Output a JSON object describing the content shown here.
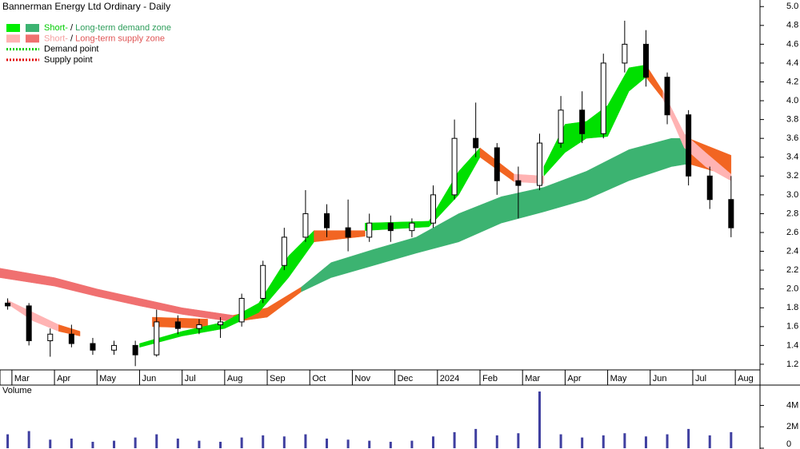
{
  "chart_data": [
    {
      "type": "candlestick",
      "title": "Bannerman Energy Ltd Ordinary - Daily",
      "xlim": [
        -0.28,
        17.58
      ],
      "ylim": [
        1.14,
        5.07
      ],
      "xticks": [
        {
          "value": 0,
          "label": "Mar"
        },
        {
          "value": 1,
          "label": "Apr"
        },
        {
          "value": 2,
          "label": "May"
        },
        {
          "value": 3,
          "label": "Jun"
        },
        {
          "value": 4,
          "label": "Jul"
        },
        {
          "value": 5,
          "label": "Aug"
        },
        {
          "value": 6,
          "label": "Sep"
        },
        {
          "value": 7,
          "label": "Oct"
        },
        {
          "value": 8,
          "label": "Nov"
        },
        {
          "value": 9,
          "label": "Dec"
        },
        {
          "value": 10,
          "label": "2024"
        },
        {
          "value": 11,
          "label": "Feb"
        },
        {
          "value": 12,
          "label": "Mar"
        },
        {
          "value": 13,
          "label": "Apr"
        },
        {
          "value": 14,
          "label": "May"
        },
        {
          "value": 15,
          "label": "Jun"
        },
        {
          "value": 16,
          "label": "Jul"
        },
        {
          "value": 17,
          "label": "Aug"
        }
      ],
      "yticks": [
        1.2,
        1.4,
        1.6,
        1.8,
        {
          "value": 2,
          "label": "2.0"
        },
        2.2,
        2.4,
        2.6,
        2.8,
        {
          "value": 3,
          "label": "3.0"
        },
        3.2,
        3.4,
        3.6,
        3.8,
        {
          "value": 4,
          "label": "4.0"
        },
        4.2,
        4.4,
        4.6,
        4.8,
        {
          "value": 5,
          "label": "5.0"
        }
      ],
      "x": [
        -0.1,
        0.4,
        0.9,
        1.4,
        1.9,
        2.4,
        2.9,
        3.4,
        3.9,
        4.4,
        4.9,
        5.4,
        5.9,
        6.4,
        6.9,
        7.4,
        7.9,
        8.4,
        8.9,
        9.4,
        9.9,
        10.4,
        10.9,
        11.4,
        11.9,
        12.4,
        12.9,
        13.4,
        13.9,
        14.4,
        14.9,
        15.4,
        15.9,
        16.4,
        16.9
      ],
      "open": [
        1.85,
        1.82,
        1.45,
        1.52,
        1.42,
        1.35,
        1.4,
        1.3,
        1.65,
        1.58,
        1.62,
        1.65,
        1.9,
        2.25,
        2.55,
        2.8,
        2.65,
        2.55,
        2.7,
        2.62,
        2.7,
        3.0,
        3.6,
        3.5,
        3.15,
        3.1,
        3.55,
        3.9,
        3.65,
        4.4,
        4.6,
        4.25,
        3.85,
        3.2,
        2.95
      ],
      "high": [
        1.9,
        1.85,
        1.58,
        1.62,
        1.48,
        1.45,
        1.45,
        1.78,
        1.72,
        1.68,
        1.7,
        1.95,
        2.3,
        2.65,
        3.05,
        2.9,
        2.95,
        2.8,
        2.78,
        2.75,
        3.1,
        3.8,
        3.98,
        3.55,
        3.3,
        3.65,
        4.05,
        4.1,
        4.5,
        4.85,
        4.75,
        4.3,
        3.9,
        3.3,
        3.2
      ],
      "low": [
        1.78,
        1.4,
        1.28,
        1.38,
        1.3,
        1.3,
        1.18,
        1.28,
        1.52,
        1.52,
        1.48,
        1.6,
        1.85,
        2.2,
        2.5,
        2.55,
        2.4,
        2.5,
        2.5,
        2.55,
        2.65,
        2.95,
        3.4,
        3.0,
        2.75,
        3.05,
        3.5,
        3.55,
        3.6,
        4.3,
        4.15,
        3.75,
        3.1,
        2.85,
        2.55
      ],
      "close": [
        1.82,
        1.45,
        1.52,
        1.42,
        1.35,
        1.4,
        1.3,
        1.65,
        1.58,
        1.62,
        1.65,
        1.9,
        2.25,
        2.55,
        2.8,
        2.65,
        2.55,
        2.7,
        2.62,
        2.7,
        3.0,
        3.6,
        3.5,
        3.15,
        3.1,
        3.55,
        3.9,
        3.65,
        4.4,
        4.6,
        4.25,
        3.85,
        3.2,
        2.95,
        2.65
      ],
      "up_color": "#ffffff",
      "down_color": "#000000",
      "zones": [
        {
          "color": "#f07070",
          "x": [
            -0.28,
            1,
            2,
            3,
            4,
            5.2
          ],
          "upper": [
            2.22,
            2.12,
            2.0,
            1.9,
            1.8,
            1.72
          ],
          "lower": [
            2.12,
            2.03,
            1.92,
            1.82,
            1.73,
            1.65
          ]
        },
        {
          "color": "#f26522",
          "x": [
            5.2,
            6,
            6.8
          ],
          "upper": [
            1.72,
            1.8,
            2.02
          ],
          "lower": [
            1.65,
            1.7,
            1.97
          ]
        },
        {
          "color": "#3cb371",
          "x": [
            6.8,
            7.5,
            8.5,
            9.5,
            10.5,
            11.5,
            12.5,
            13.5,
            14.5,
            15.5,
            15.9
          ],
          "upper": [
            2.02,
            2.28,
            2.42,
            2.55,
            2.8,
            2.98,
            3.08,
            3.25,
            3.48,
            3.6,
            3.6
          ],
          "lower": [
            1.97,
            2.12,
            2.25,
            2.38,
            2.5,
            2.7,
            2.82,
            2.95,
            3.15,
            3.3,
            3.33
          ]
        },
        {
          "color": "#f26522",
          "x": [
            15.9,
            16.9
          ],
          "upper": [
            3.6,
            3.42
          ],
          "lower": [
            3.33,
            3.2
          ]
        },
        {
          "color": "#ffb3b3",
          "x": [
            -0.1,
            0.5,
            1.1
          ],
          "upper": [
            1.88,
            1.75,
            1.62
          ],
          "lower": [
            1.84,
            1.66,
            1.55
          ]
        },
        {
          "color": "#f26522",
          "x": [
            1.1,
            1.6
          ],
          "upper": [
            1.62,
            1.55
          ],
          "lower": [
            1.55,
            1.5
          ]
        },
        {
          "color": "#f26522",
          "x": [
            3.3,
            4.6
          ],
          "upper": [
            1.7,
            1.68
          ],
          "lower": [
            1.6,
            1.58
          ]
        },
        {
          "color": "#00e000",
          "x": [
            3.0,
            4.0,
            5.0,
            5.8,
            6.5,
            7.1
          ],
          "upper": [
            1.42,
            1.55,
            1.65,
            1.85,
            2.35,
            2.62
          ],
          "lower": [
            1.38,
            1.5,
            1.58,
            1.75,
            2.12,
            2.5
          ]
        },
        {
          "color": "#f26522",
          "x": [
            7.1,
            8.3
          ],
          "upper": [
            2.62,
            2.62
          ],
          "lower": [
            2.5,
            2.56
          ]
        },
        {
          "color": "#00e000",
          "x": [
            8.3,
            9.8,
            10.5,
            11.0
          ],
          "upper": [
            2.7,
            2.72,
            3.25,
            3.5
          ],
          "lower": [
            2.62,
            2.66,
            3.0,
            3.4
          ]
        },
        {
          "color": "#f26522",
          "x": [
            11.0,
            11.8
          ],
          "upper": [
            3.5,
            3.22
          ],
          "lower": [
            3.4,
            3.14
          ]
        },
        {
          "color": "#ffb3b3",
          "x": [
            11.8,
            12.5
          ],
          "upper": [
            3.22,
            3.2
          ],
          "lower": [
            3.14,
            3.12
          ]
        },
        {
          "color": "#00e000",
          "x": [
            12.5,
            13.0,
            13.5,
            14.0,
            14.5,
            14.9
          ],
          "upper": [
            3.3,
            3.75,
            3.78,
            3.95,
            4.35,
            4.38
          ],
          "lower": [
            3.2,
            3.45,
            3.6,
            3.62,
            4.1,
            4.25
          ]
        },
        {
          "color": "#f26522",
          "x": [
            14.9,
            15.3
          ],
          "upper": [
            4.38,
            4.1
          ],
          "lower": [
            4.25,
            4.02
          ]
        },
        {
          "color": "#ffb3b3",
          "x": [
            15.3,
            15.8,
            16.3,
            16.9
          ],
          "upper": [
            4.1,
            3.65,
            3.45,
            3.22
          ],
          "lower": [
            4.02,
            3.5,
            3.3,
            3.15
          ]
        }
      ],
      "legend": [
        {
          "swatches": [
            "#00ee00",
            "#3cb371"
          ],
          "parts": [
            {
              "text": "Short-",
              "color": "#00cc00"
            },
            {
              "text": " / ",
              "color": "#000000"
            },
            {
              "text": "Long-term demand zone",
              "color": "#2e9e5b"
            }
          ]
        },
        {
          "swatches": [
            "#ffb3b3",
            "#f07070"
          ],
          "parts": [
            {
              "text": "Short-",
              "color": "#f4a0a0"
            },
            {
              "text": " / ",
              "color": "#000000"
            },
            {
              "text": "Long-term supply zone",
              "color": "#e05555"
            }
          ]
        },
        {
          "line": "#00cc00",
          "parts": [
            {
              "text": "Demand point",
              "color": "#000000"
            }
          ]
        },
        {
          "line": "#e00000",
          "parts": [
            {
              "text": "Supply point",
              "color": "#000000"
            }
          ]
        }
      ]
    },
    {
      "type": "bar",
      "title": "Volume",
      "title_color": "#4b2a8a",
      "color": "#3f3fa0",
      "xlim": [
        -0.28,
        17.58
      ],
      "ylim": [
        0,
        5900000
      ],
      "yticks": [
        0,
        {
          "value": 2000000,
          "label": "2M"
        },
        {
          "value": 4000000,
          "label": "4M"
        }
      ],
      "x": [
        -0.1,
        0.4,
        0.9,
        1.4,
        1.9,
        2.4,
        2.9,
        3.4,
        3.9,
        4.4,
        4.9,
        5.4,
        5.9,
        6.4,
        6.9,
        7.4,
        7.9,
        8.4,
        8.9,
        9.4,
        9.9,
        10.4,
        10.9,
        11.4,
        11.9,
        12.4,
        12.9,
        13.4,
        13.9,
        14.4,
        14.9,
        15.4,
        15.9,
        16.4,
        16.9
      ],
      "values": [
        1300000,
        1600000,
        800000,
        900000,
        600000,
        700000,
        1000000,
        1300000,
        900000,
        700000,
        600000,
        1000000,
        1200000,
        1100000,
        1300000,
        900000,
        800000,
        700000,
        600000,
        700000,
        1100000,
        1500000,
        1800000,
        1200000,
        1400000,
        5300000,
        1300000,
        1000000,
        1200000,
        1400000,
        1100000,
        1300000,
        1800000,
        1200000,
        1500000
      ]
    }
  ]
}
